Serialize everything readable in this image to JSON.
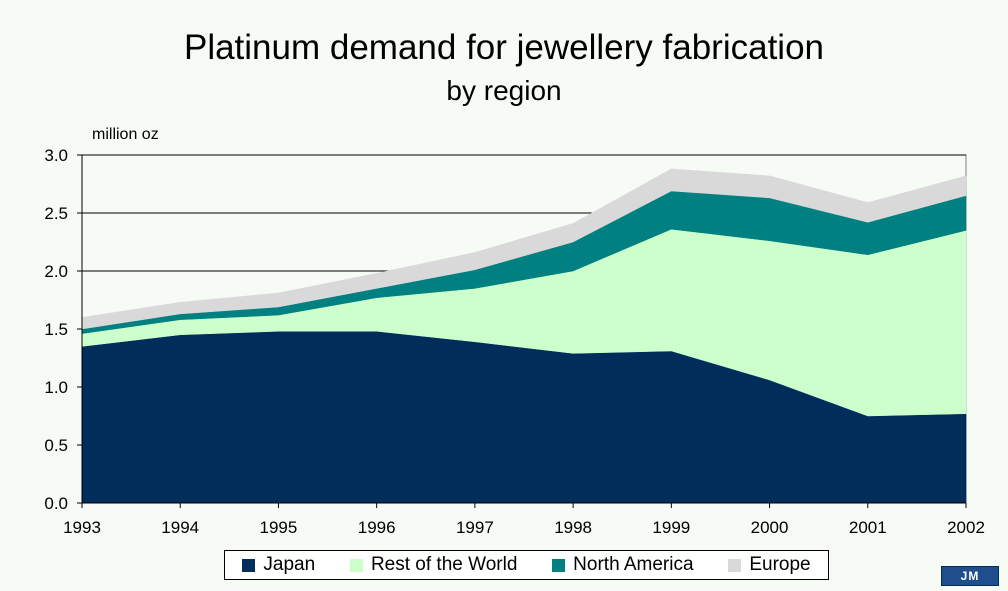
{
  "title": "Platinum demand for jewellery fabrication",
  "subtitle": "by region",
  "logo_text": "JM",
  "colors": {
    "japan": "#002d5a",
    "rest_of_world": "#ccffcc",
    "north_america": "#008080",
    "europe": "#d9d9d9",
    "plot_bg": "#f6fbf6",
    "gridline": "#000000"
  },
  "chart_data": {
    "type": "area",
    "stacked": true,
    "ylabel": "million oz",
    "ylim": [
      0,
      3.0
    ],
    "yticks": [
      "0.0",
      "0.5",
      "1.0",
      "1.5",
      "2.0",
      "2.5",
      "3.0"
    ],
    "x": [
      "1993",
      "1994",
      "1995",
      "1996",
      "1997",
      "1998",
      "1999",
      "2000",
      "2001",
      "2002"
    ],
    "series": [
      {
        "name": "Japan",
        "color": "#002d5a",
        "values": [
          1.35,
          1.45,
          1.48,
          1.48,
          1.39,
          1.29,
          1.31,
          1.06,
          0.75,
          0.77
        ]
      },
      {
        "name": "Rest of the World",
        "color": "#ccffcc",
        "values": [
          0.11,
          0.13,
          0.14,
          0.29,
          0.46,
          0.71,
          1.05,
          1.2,
          1.39,
          1.58
        ]
      },
      {
        "name": "North America",
        "color": "#008080",
        "values": [
          0.04,
          0.05,
          0.07,
          0.08,
          0.16,
          0.25,
          0.33,
          0.37,
          0.28,
          0.3
        ]
      },
      {
        "name": "Europe",
        "color": "#d9d9d9",
        "values": [
          0.1,
          0.1,
          0.12,
          0.13,
          0.15,
          0.16,
          0.19,
          0.19,
          0.17,
          0.17
        ]
      }
    ],
    "grid": true,
    "legend_position": "bottom"
  }
}
